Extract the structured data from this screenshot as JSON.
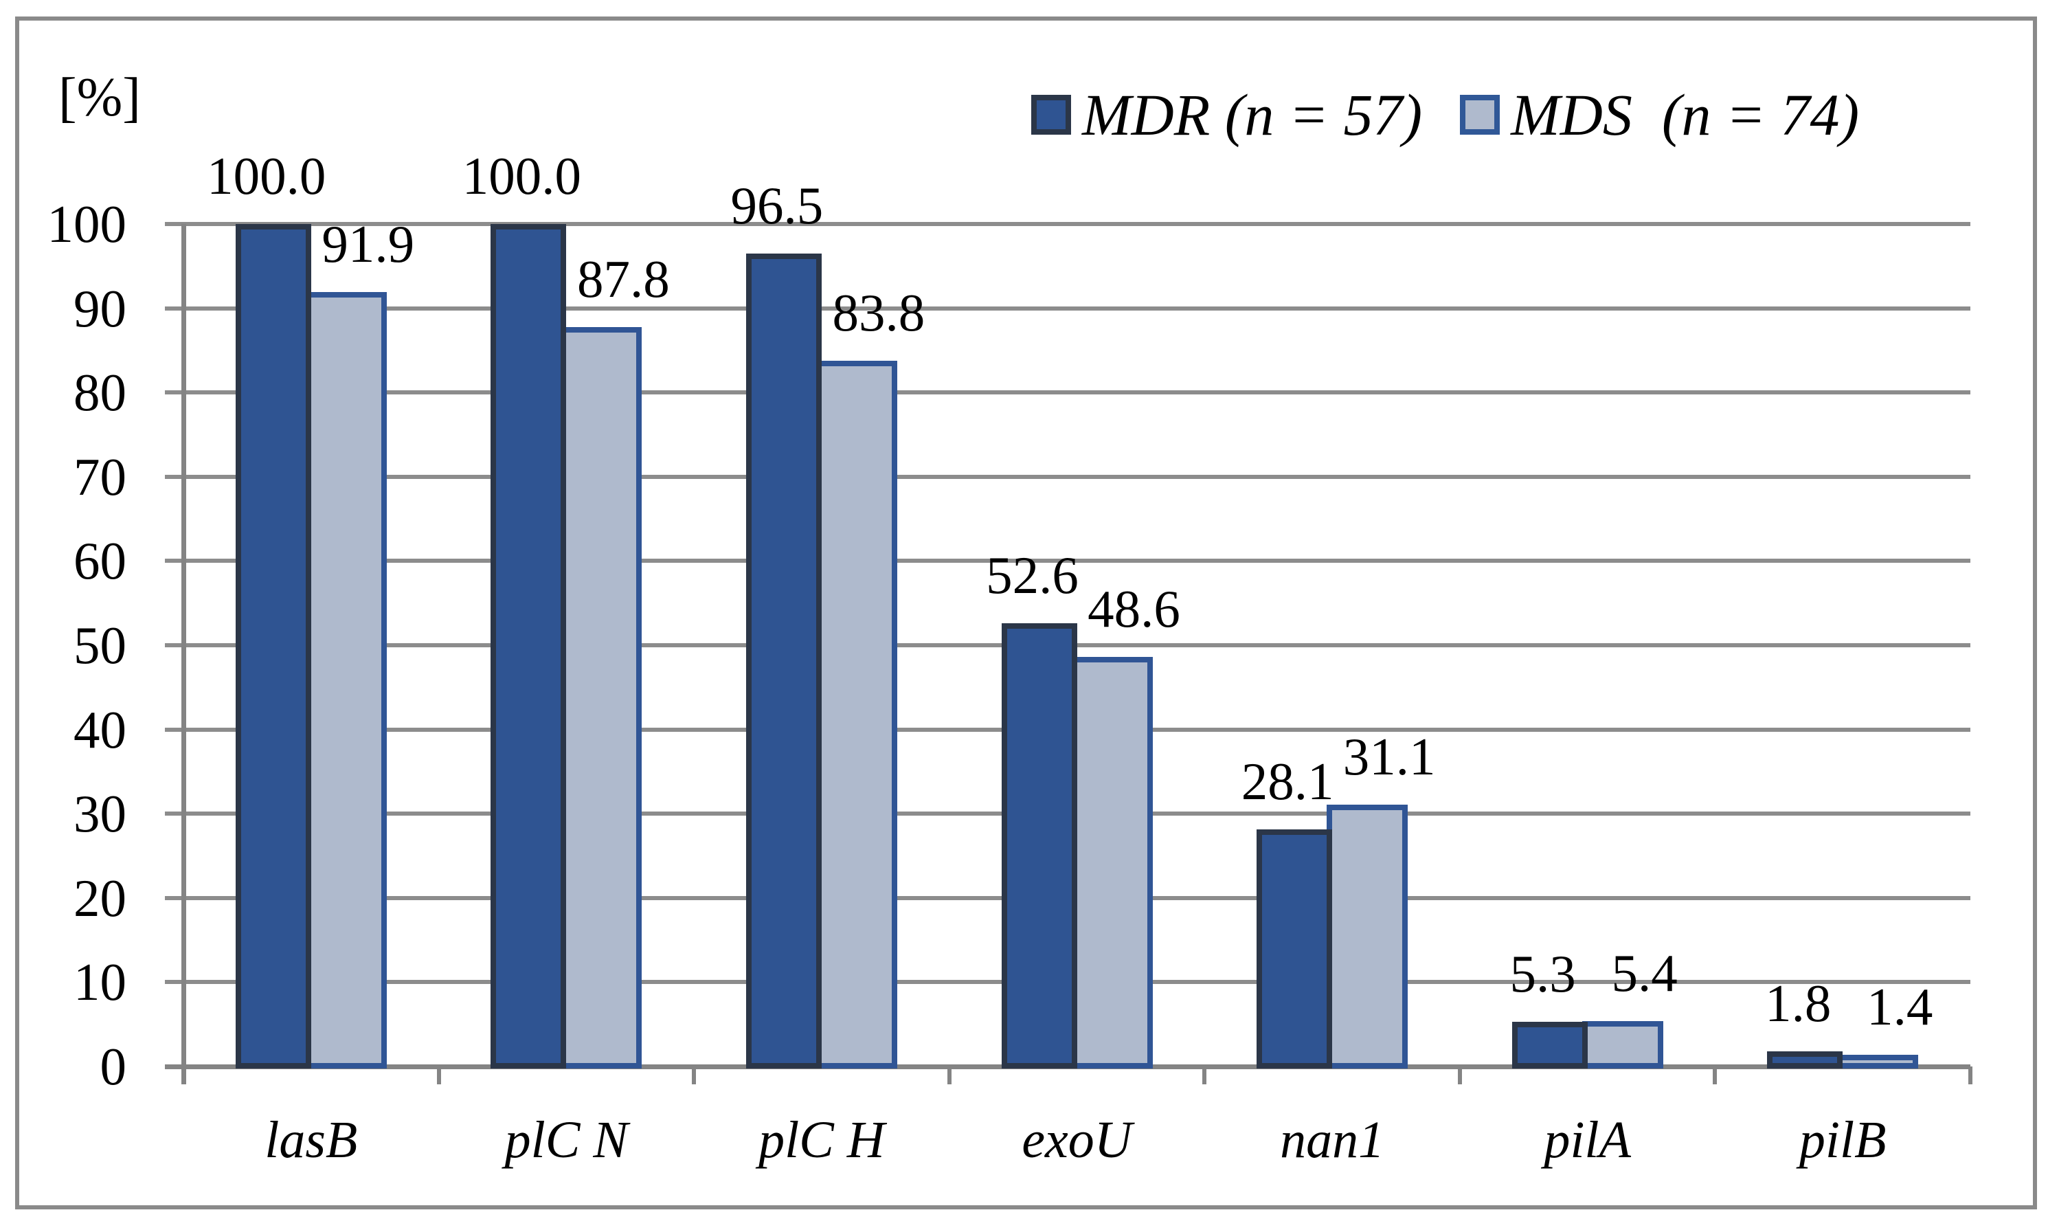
{
  "chart_data": {
    "type": "bar",
    "title": "",
    "ylabel": "[%]",
    "xlabel": "",
    "categories": [
      "lasB",
      "plC N",
      "plC H",
      "exoU",
      "nan1",
      "pilA",
      "pilB"
    ],
    "series": [
      {
        "name": "MDR (n = 57)",
        "values": [
          100.0,
          100.0,
          96.5,
          52.6,
          28.1,
          5.3,
          1.8
        ],
        "labels": [
          "100.0",
          "100.0",
          "96.5",
          "52.6",
          "28.1",
          "5.3",
          "1.8"
        ],
        "fill": "#2F5492",
        "border": "#2B3648"
      },
      {
        "name": "MDS  (n = 74)",
        "values": [
          91.9,
          87.8,
          83.8,
          48.6,
          31.1,
          5.4,
          1.4
        ],
        "labels": [
          "91.9",
          "87.8",
          "83.8",
          "48.6",
          "31.1",
          "5.4",
          "1.4"
        ],
        "fill": "#AFBACD",
        "border": "#305595"
      }
    ],
    "ylim": [
      0,
      100
    ],
    "yticks": [
      0,
      10,
      20,
      30,
      40,
      50,
      60,
      70,
      80,
      90,
      100
    ],
    "grid": true,
    "gridline_color": "#8C8C8C",
    "axis_color": "#848484",
    "frame_color": "#8A8A8A",
    "legend_position": "top-right",
    "value_label_decimals": 1
  }
}
